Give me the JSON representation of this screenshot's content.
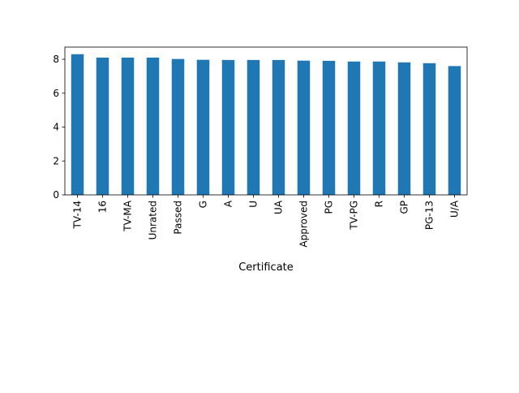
{
  "chart_data": {
    "type": "bar",
    "title": "",
    "xlabel": "Certificate",
    "ylabel": "",
    "categories": [
      "TV-14",
      "16",
      "TV-MA",
      "Unrated",
      "Passed",
      "G",
      "A",
      "U",
      "UA",
      "Approved",
      "PG",
      "TV-PG",
      "R",
      "GP",
      "PG-13",
      "U/A"
    ],
    "values": [
      8.3,
      8.1,
      8.1,
      8.1,
      8.02,
      7.97,
      7.96,
      7.96,
      7.96,
      7.92,
      7.91,
      7.87,
      7.87,
      7.82,
      7.77,
      7.6
    ],
    "yticks": [
      0,
      2,
      4,
      6,
      8
    ],
    "ylim": [
      0,
      8.72
    ],
    "grid": false,
    "bar_color": "#1f77b4"
  }
}
